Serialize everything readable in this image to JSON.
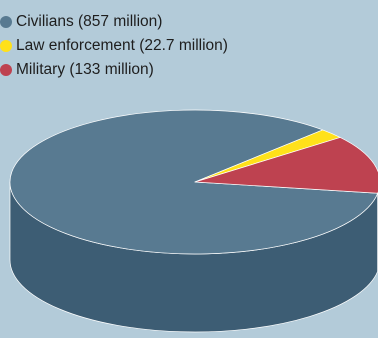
{
  "chart_data": {
    "type": "pie",
    "three_d": true,
    "title": "",
    "legend_position": "top-left",
    "slices": [
      {
        "label": "Civilians (857 million)",
        "value": 857,
        "color": "#587a91",
        "side_color": "#3d5d74"
      },
      {
        "label": "Law enforcement (22.7 million)",
        "value": 22.7,
        "color": "#ffe11a",
        "side_color": "#f2cf00"
      },
      {
        "label": "Military (133 million)",
        "value": 133,
        "color": "#be4250",
        "side_color": "#a8002a"
      }
    ]
  }
}
